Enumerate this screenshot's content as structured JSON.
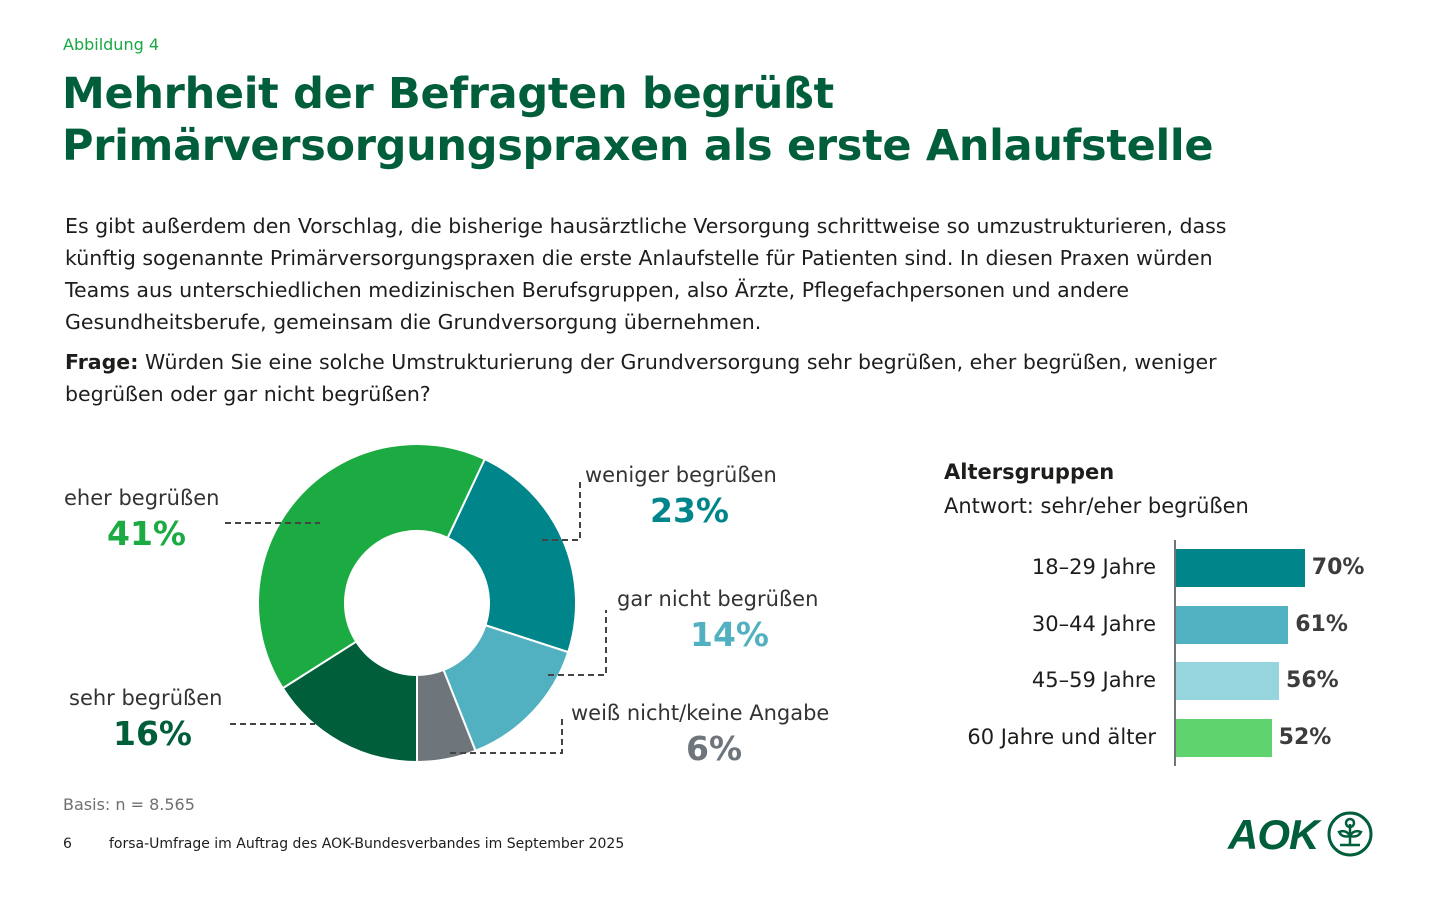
{
  "figure_label": "Abbildung 4",
  "title_lines": [
    "Mehrheit der Befragten begrüßt",
    "Primärversorgungspraxen als erste Anlaufstelle"
  ],
  "intro_lines": [
    "Es gibt außerdem den Vorschlag, die bisherige hausärztliche Versorgung schrittweise so umzustrukturieren, dass",
    "künftig sogenannte Primärversorgungspraxen die erste Anlaufstelle für Patienten sind. In diesen Praxen würden",
    "Teams aus unterschiedlichen medizinischen Berufsgruppen, also Ärzte,  Pflegefachpersonen und andere",
    "Gesundheitsberufe,  gemeinsam die Grundversorgung übernehmen."
  ],
  "question": {
    "label": "Frage:",
    "line1": " Würden Sie eine solche Umstrukturierung der Grundversorgung sehr begrüßen, eher begrüßen, weniger",
    "line2": "begrüßen oder gar nicht begrüßen?"
  },
  "chart_data": [
    {
      "type": "pie",
      "variant": "donut",
      "start_direction": "clockwise",
      "slices": [
        {
          "label": "weniger begrüßen",
          "value": 23,
          "value_label": "23%",
          "color": "#00868a"
        },
        {
          "label": "gar nicht begrüßen",
          "value": 14,
          "value_label": "14%",
          "color": "#52b1c0"
        },
        {
          "label": "weiß nicht/keine Angabe",
          "value": 6,
          "value_label": "6%",
          "color": "#6e767c"
        },
        {
          "label": "sehr begrüßen",
          "value": 16,
          "value_label": "16%",
          "color": "#005e3a"
        },
        {
          "label": "eher begrüßen",
          "value": 41,
          "value_label": "41%",
          "color": "#1cab42"
        }
      ]
    },
    {
      "type": "bar",
      "orientation": "horizontal",
      "title": "Altersgruppen",
      "subtitle": "Antwort: sehr/eher begrüßen",
      "categories": [
        "18–29 Jahre",
        "30–44 Jahre",
        "45–59 Jahre",
        "60 Jahre und älter"
      ],
      "values": [
        70,
        61,
        56,
        52
      ],
      "value_labels": [
        "70%",
        "61%",
        "56%",
        "52%"
      ],
      "colors": [
        "#00868a",
        "#52b1c0",
        "#96d5dd",
        "#5fd36e"
      ],
      "unit": "%"
    }
  ],
  "basis": "Basis: n = 8.565",
  "page_number": "6",
  "source": "forsa-Umfrage im Auftrag des AOK-Bundesverbandes im September 2025",
  "logo_text": "AOK"
}
